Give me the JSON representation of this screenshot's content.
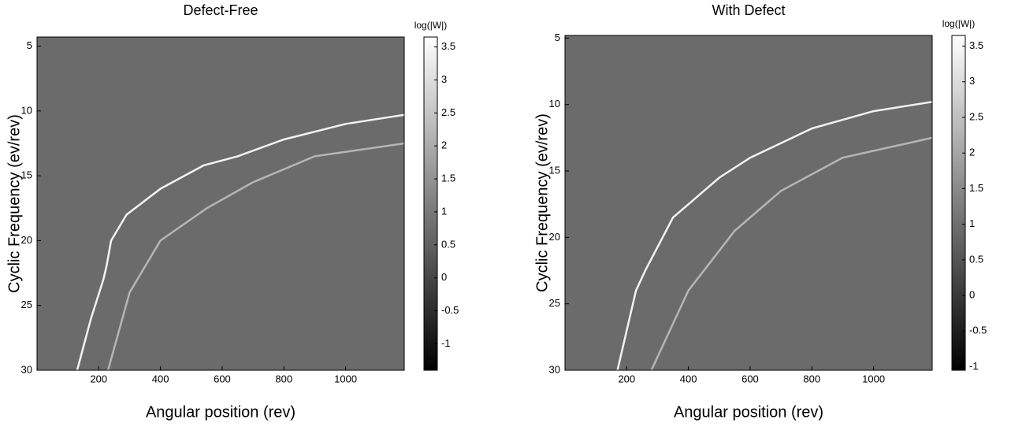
{
  "chart_data": [
    {
      "type": "heatmap",
      "title": "Defect-Free",
      "x_label": "Angular position (rev)",
      "y_label": "Cyclic Frequency (ev/rev)",
      "xlim": [
        0,
        1190
      ],
      "xticks": [
        200,
        400,
        600,
        800,
        1000
      ],
      "ylim": [
        4.3,
        30
      ],
      "yticks": [
        5,
        10,
        15,
        20,
        25,
        30
      ],
      "y_inverted": true,
      "colormap": "gray",
      "colorbar_title": "log(|W|)",
      "clim": [
        -1.4,
        3.65
      ],
      "cticks": [
        -1,
        -0.5,
        0,
        0.5,
        1,
        1.5,
        2,
        2.5,
        3,
        3.5
      ],
      "series": [
        {
          "color": "#f2f2f2",
          "x": [
            130,
            175,
            215,
            225,
            240,
            290,
            400,
            540,
            650,
            800,
            1000,
            1190
          ],
          "values": [
            30,
            26,
            23,
            22,
            20,
            18,
            16,
            14.2,
            13.5,
            12.2,
            11,
            10.3
          ]
        },
        {
          "color": "#b5b5b5",
          "x": [
            230,
            300,
            400,
            550,
            700,
            900,
            1190
          ],
          "values": [
            30,
            24,
            20,
            17.5,
            15.5,
            13.5,
            12.5
          ]
        }
      ]
    },
    {
      "type": "heatmap",
      "title": "With Defect",
      "x_label": "Angular position (rev)",
      "y_label": "Cyclic Frequency (ev/rev)",
      "xlim": [
        0,
        1190
      ],
      "xticks": [
        200,
        400,
        600,
        800,
        1000
      ],
      "ylim": [
        4.8,
        30
      ],
      "yticks": [
        5,
        10,
        15,
        20,
        25,
        30
      ],
      "y_inverted": true,
      "colormap": "gray",
      "colorbar_title": "log(|W|)",
      "clim": [
        -1.05,
        3.65
      ],
      "cticks": [
        -1,
        -0.5,
        0,
        0.5,
        1,
        1.5,
        2,
        2.5,
        3,
        3.5
      ],
      "series": [
        {
          "color": "#f2f2f2",
          "x": [
            170,
            230,
            260,
            350,
            500,
            600,
            800,
            1000,
            1190
          ],
          "values": [
            30,
            24,
            22.5,
            18.5,
            15.5,
            14,
            11.8,
            10.5,
            9.8
          ]
        },
        {
          "color": "#b5b5b5",
          "x": [
            280,
            400,
            550,
            700,
            900,
            1190
          ],
          "values": [
            30,
            24,
            19.5,
            16.5,
            14,
            12.5
          ]
        }
      ]
    }
  ]
}
